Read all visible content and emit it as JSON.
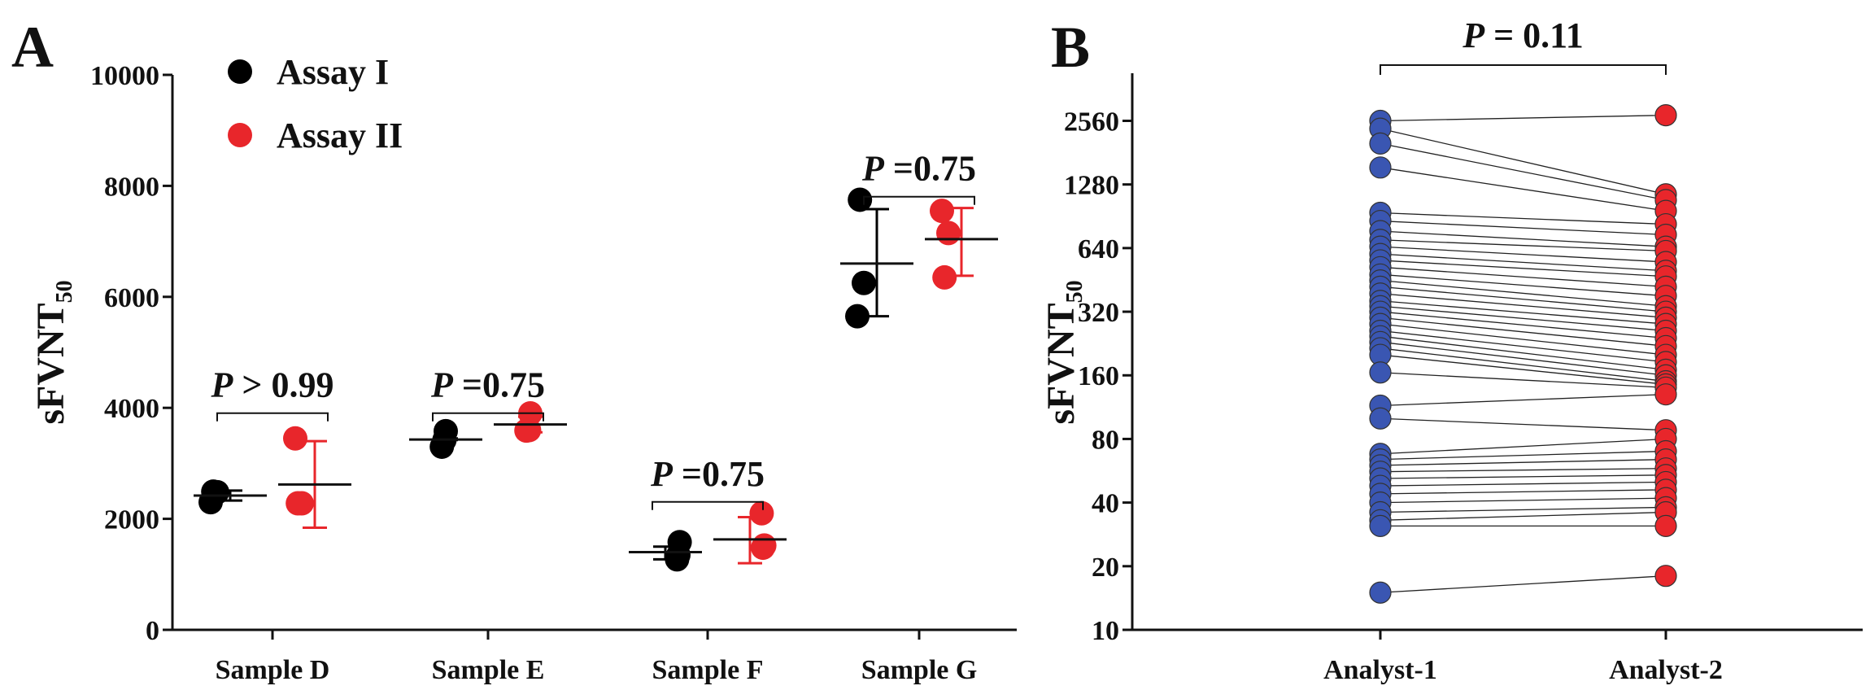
{
  "chart_data": [
    {
      "panel_label": "A",
      "type": "scatter",
      "ylabel": "sFVNT",
      "ylabel_sub": "50",
      "ylim": [
        0,
        10000
      ],
      "yticks": [
        0,
        2000,
        4000,
        6000,
        8000,
        10000
      ],
      "categories": [
        "Sample D",
        "Sample E",
        "Sample F",
        "Sample G"
      ],
      "legend_position": "top-left",
      "series": [
        {
          "name": "Assay I",
          "color": "#000000",
          "values": [
            [
              2300,
              2480,
              2490
            ],
            [
              3300,
              3580,
              3420
            ],
            [
              1270,
              1580,
              1350
            ],
            [
              5650,
              6250,
              7750
            ]
          ],
          "mean": [
            2420,
            3430,
            1400,
            6600
          ],
          "sd_low": [
            2330,
            3420,
            1270,
            5650
          ],
          "sd_high": [
            2510,
            3450,
            1500,
            7580
          ]
        },
        {
          "name": "Assay II",
          "color": "#e8262b",
          "values": [
            [
              3450,
              2280,
              2280
            ],
            [
              3590,
              3900,
              3600
            ],
            [
              2100,
              1520,
              1480
            ],
            [
              7550,
              7150,
              6350
            ]
          ],
          "mean": [
            2620,
            3700,
            1630,
            7040
          ],
          "sd_low": [
            1840,
            3560,
            1200,
            6380
          ],
          "sd_high": [
            3400,
            3840,
            2030,
            7600
          ]
        }
      ],
      "comparisons": [
        {
          "category": "Sample D",
          "italic": "P",
          "rest": " > 0.99",
          "y": 4550
        },
        {
          "category": "Sample E",
          "italic": "P",
          "rest": " =0.75",
          "y": 4550
        },
        {
          "category": "Sample F",
          "italic": "P",
          "rest": " =0.75",
          "y": 2950
        },
        {
          "category": "Sample G",
          "italic": "P",
          "rest": " =0.75",
          "y": 8450
        }
      ]
    },
    {
      "panel_label": "B",
      "type": "scatter",
      "subtype": "paired",
      "ylabel": "sFVNT",
      "ylabel_sub": "50",
      "yscale": "log2",
      "ylim": [
        10,
        4300
      ],
      "yticks": [
        10,
        20,
        40,
        80,
        160,
        320,
        640,
        1280,
        2560
      ],
      "categories": [
        "Analyst-1",
        "Analyst-2"
      ],
      "colors": [
        "#3a56b2",
        "#e8262b"
      ],
      "comparison": {
        "italic": "P",
        "rest": " = 0.11"
      },
      "pairs": [
        [
          2560,
          2720
        ],
        [
          2350,
          1150
        ],
        [
          2000,
          1080
        ],
        [
          1540,
          960
        ],
        [
          940,
          830
        ],
        [
          860,
          740
        ],
        [
          770,
          650
        ],
        [
          700,
          620
        ],
        [
          650,
          550
        ],
        [
          600,
          500
        ],
        [
          560,
          470
        ],
        [
          520,
          420
        ],
        [
          480,
          380
        ],
        [
          450,
          340
        ],
        [
          420,
          320
        ],
        [
          390,
          300
        ],
        [
          360,
          280
        ],
        [
          340,
          260
        ],
        [
          320,
          240
        ],
        [
          300,
          220
        ],
        [
          280,
          200
        ],
        [
          260,
          185
        ],
        [
          245,
          170
        ],
        [
          230,
          160
        ],
        [
          215,
          150
        ],
        [
          200,
          145
        ],
        [
          165,
          140
        ],
        [
          115,
          130
        ],
        [
          100,
          88
        ],
        [
          68,
          80
        ],
        [
          64,
          70
        ],
        [
          60,
          64
        ],
        [
          56,
          58
        ],
        [
          52,
          54
        ],
        [
          48,
          50
        ],
        [
          44,
          46
        ],
        [
          40,
          42
        ],
        [
          36,
          38
        ],
        [
          33,
          36
        ],
        [
          31,
          31
        ],
        [
          15,
          18
        ]
      ]
    }
  ]
}
